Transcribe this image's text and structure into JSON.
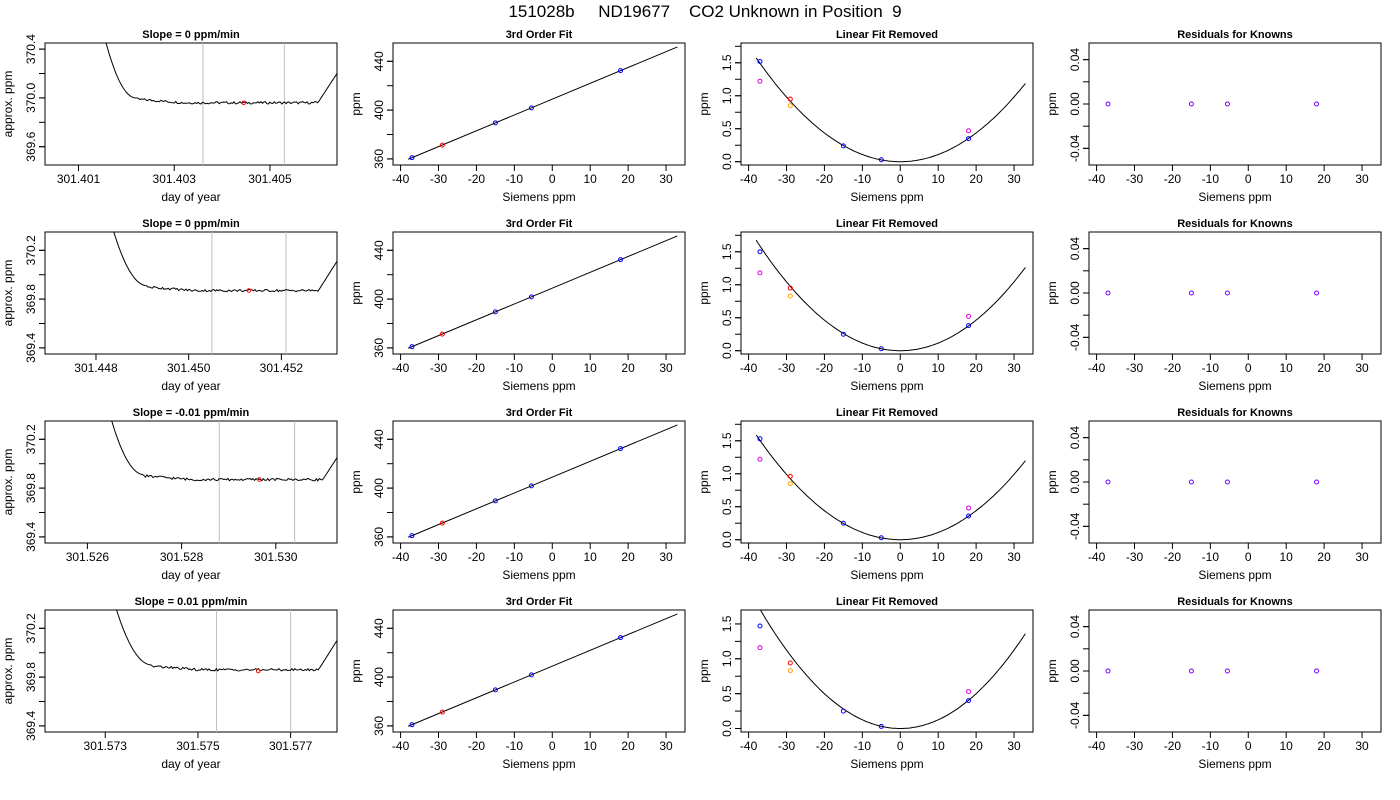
{
  "page_title": "151028b     ND19677    CO2 Unknown in Position  9",
  "chart_data": [
    {
      "type": "line",
      "panel": "time-trace",
      "title": "Slope =  0  ppm/min",
      "xlabel": "day of year",
      "ylabel": "approx. ppm",
      "xlim": [
        301.4003,
        301.4064
      ],
      "ylim": [
        369.45,
        370.45
      ],
      "xticks": [
        "301.401",
        "301.403",
        "301.405"
      ],
      "yticks": [
        "369.6",
        "370.0",
        "370.4"
      ],
      "window": [
        301.4036,
        301.4053
      ],
      "mean_point": [
        301.40445,
        369.96
      ],
      "plateau": 369.96,
      "rise_end": 301.4022,
      "fall_start": 301.406
    },
    {
      "type": "line",
      "panel": "cal-fit",
      "title": "3rd Order Fit",
      "xlabel": "Siemens ppm",
      "ylabel": "ppm",
      "xlim": [
        -42,
        35
      ],
      "ylim": [
        355,
        455
      ],
      "xticks": [
        "-40",
        "-30",
        "-20",
        "-10",
        "0",
        "10",
        "20",
        "30"
      ],
      "yticks": [
        "360",
        "400",
        "440"
      ],
      "line": [
        [
          -38,
          359.7
        ],
        [
          33,
          451.8
        ]
      ],
      "points": [
        {
          "x": -37,
          "y": 361.0,
          "color": "blue"
        },
        {
          "x": -29,
          "y": 371.3,
          "color": "red"
        },
        {
          "x": -15,
          "y": 389.5,
          "color": "blue"
        },
        {
          "x": -5.5,
          "y": 401.8,
          "color": "blue"
        },
        {
          "x": 18,
          "y": 432.4,
          "color": "blue"
        }
      ]
    },
    {
      "type": "scatter",
      "panel": "linear-removed",
      "title": "Linear Fit Removed",
      "xlabel": "Siemens ppm",
      "ylabel": "ppm",
      "xlim": [
        -42,
        35
      ],
      "ylim": [
        -0.05,
        1.8
      ],
      "xticks": [
        "-40",
        "-30",
        "-20",
        "-10",
        "0",
        "10",
        "20",
        "30"
      ],
      "yticks": [
        "0.0",
        "0.5",
        "1.0",
        "1.5"
      ],
      "curve_a": 0.00109,
      "points": [
        {
          "x": -37,
          "y": 1.52,
          "color": "blue"
        },
        {
          "x": -37,
          "y": 1.22,
          "color": "magenta"
        },
        {
          "x": -29,
          "y": 0.95,
          "color": "red"
        },
        {
          "x": -29,
          "y": 0.85,
          "color": "orange"
        },
        {
          "x": -15,
          "y": 0.24,
          "color": "blue"
        },
        {
          "x": -5,
          "y": 0.03,
          "color": "blue"
        },
        {
          "x": 18,
          "y": 0.35,
          "color": "blue"
        },
        {
          "x": 18,
          "y": 0.47,
          "color": "magenta"
        }
      ]
    },
    {
      "type": "scatter",
      "panel": "residuals",
      "title": "Residuals for Knowns",
      "xlabel": "Siemens ppm",
      "ylabel": "ppm",
      "xlim": [
        -42,
        35
      ],
      "ylim": [
        -0.055,
        0.055
      ],
      "xticks": [
        "-40",
        "-30",
        "-20",
        "-10",
        "0",
        "10",
        "20",
        "30"
      ],
      "yticks": [
        "-0.04",
        "0.00",
        "0.04"
      ],
      "points": [
        {
          "x": -37,
          "y": 0
        },
        {
          "x": -15,
          "y": 0
        },
        {
          "x": -5.5,
          "y": 0
        },
        {
          "x": 18,
          "y": 0
        }
      ]
    },
    {
      "type": "line",
      "panel": "time-trace",
      "title": "Slope =  0  ppm/min",
      "xlabel": "day of year",
      "ylabel": "approx. ppm",
      "xlim": [
        301.4469,
        301.4532
      ],
      "ylim": [
        369.35,
        370.35
      ],
      "xticks": [
        "301.448",
        "301.450",
        "301.452"
      ],
      "yticks": [
        "369.4",
        "369.8",
        "370.2"
      ],
      "window": [
        301.4505,
        301.4521
      ],
      "mean_point": [
        301.4513,
        369.87
      ],
      "plateau": 369.87,
      "rise_end": 301.4491,
      "fall_start": 301.4528
    },
    {
      "type": "line",
      "panel": "cal-fit",
      "title": "3rd Order Fit",
      "xlabel": "Siemens ppm",
      "ylabel": "ppm",
      "xlim": [
        -42,
        35
      ],
      "ylim": [
        355,
        455
      ],
      "xticks": [
        "-40",
        "-30",
        "-20",
        "-10",
        "0",
        "10",
        "20",
        "30"
      ],
      "yticks": [
        "360",
        "400",
        "440"
      ],
      "line": [
        [
          -38,
          359.7
        ],
        [
          33,
          451.8
        ]
      ],
      "points": [
        {
          "x": -37,
          "y": 361.0,
          "color": "blue"
        },
        {
          "x": -29,
          "y": 371.3,
          "color": "red"
        },
        {
          "x": -15,
          "y": 389.5,
          "color": "blue"
        },
        {
          "x": -5.5,
          "y": 401.8,
          "color": "blue"
        },
        {
          "x": 18,
          "y": 432.4,
          "color": "blue"
        }
      ]
    },
    {
      "type": "scatter",
      "panel": "linear-removed",
      "title": "Linear Fit Removed",
      "xlabel": "Siemens ppm",
      "ylabel": "ppm",
      "xlim": [
        -42,
        35
      ],
      "ylim": [
        -0.05,
        1.8
      ],
      "xticks": [
        "-40",
        "-30",
        "-20",
        "-10",
        "0",
        "10",
        "20",
        "30"
      ],
      "yticks": [
        "0.0",
        "0.5",
        "1.0",
        "1.5"
      ],
      "curve_a": 0.00116,
      "points": [
        {
          "x": -37,
          "y": 1.5,
          "color": "blue"
        },
        {
          "x": -37,
          "y": 1.18,
          "color": "magenta"
        },
        {
          "x": -29,
          "y": 0.95,
          "color": "red"
        },
        {
          "x": -29,
          "y": 0.83,
          "color": "orange"
        },
        {
          "x": -15,
          "y": 0.25,
          "color": "blue"
        },
        {
          "x": -5,
          "y": 0.03,
          "color": "blue"
        },
        {
          "x": 18,
          "y": 0.38,
          "color": "blue"
        },
        {
          "x": 18,
          "y": 0.52,
          "color": "magenta"
        }
      ]
    },
    {
      "type": "scatter",
      "panel": "residuals",
      "title": "Residuals for Knowns",
      "xlabel": "Siemens ppm",
      "ylabel": "ppm",
      "xlim": [
        -42,
        35
      ],
      "ylim": [
        -0.055,
        0.055
      ],
      "xticks": [
        "-40",
        "-30",
        "-20",
        "-10",
        "0",
        "10",
        "20",
        "30"
      ],
      "yticks": [
        "-0.04",
        "0.00",
        "0.04"
      ],
      "points": [
        {
          "x": -37,
          "y": 0
        },
        {
          "x": -15,
          "y": 0
        },
        {
          "x": -5.5,
          "y": 0
        },
        {
          "x": 18,
          "y": 0
        }
      ]
    },
    {
      "type": "line",
      "panel": "time-trace",
      "title": "Slope =  -0.01  ppm/min",
      "xlabel": "day of year",
      "ylabel": "approx. ppm",
      "xlim": [
        301.5251,
        301.5313
      ],
      "ylim": [
        369.35,
        370.35
      ],
      "xticks": [
        "301.526",
        "301.528",
        "301.530"
      ],
      "yticks": [
        "369.4",
        "369.8",
        "370.2"
      ],
      "window": [
        301.5288,
        301.5304
      ],
      "mean_point": [
        301.52965,
        369.87
      ],
      "plateau": 369.87,
      "rise_end": 301.5272,
      "fall_start": 301.531
    },
    {
      "type": "line",
      "panel": "cal-fit",
      "title": "3rd Order Fit",
      "xlabel": "Siemens ppm",
      "ylabel": "ppm",
      "xlim": [
        -42,
        35
      ],
      "ylim": [
        355,
        455
      ],
      "xticks": [
        "-40",
        "-30",
        "-20",
        "-10",
        "0",
        "10",
        "20",
        "30"
      ],
      "yticks": [
        "360",
        "400",
        "440"
      ],
      "line": [
        [
          -38,
          359.7
        ],
        [
          33,
          451.8
        ]
      ],
      "points": [
        {
          "x": -37,
          "y": 361.0,
          "color": "blue"
        },
        {
          "x": -29,
          "y": 371.3,
          "color": "red"
        },
        {
          "x": -15,
          "y": 389.5,
          "color": "blue"
        },
        {
          "x": -5.5,
          "y": 401.8,
          "color": "blue"
        },
        {
          "x": 18,
          "y": 432.4,
          "color": "blue"
        }
      ]
    },
    {
      "type": "scatter",
      "panel": "linear-removed",
      "title": "Linear Fit Removed",
      "xlabel": "Siemens ppm",
      "ylabel": "ppm",
      "xlim": [
        -42,
        35
      ],
      "ylim": [
        -0.05,
        1.8
      ],
      "xticks": [
        "-40",
        "-30",
        "-20",
        "-10",
        "0",
        "10",
        "20",
        "30"
      ],
      "yticks": [
        "0.0",
        "0.5",
        "1.0",
        "1.5"
      ],
      "curve_a": 0.0011,
      "points": [
        {
          "x": -37,
          "y": 1.53,
          "color": "blue"
        },
        {
          "x": -37,
          "y": 1.22,
          "color": "magenta"
        },
        {
          "x": -29,
          "y": 0.96,
          "color": "red"
        },
        {
          "x": -29,
          "y": 0.85,
          "color": "orange"
        },
        {
          "x": -15,
          "y": 0.25,
          "color": "blue"
        },
        {
          "x": -5,
          "y": 0.03,
          "color": "blue"
        },
        {
          "x": 18,
          "y": 0.36,
          "color": "blue"
        },
        {
          "x": 18,
          "y": 0.48,
          "color": "magenta"
        }
      ]
    },
    {
      "type": "scatter",
      "panel": "residuals",
      "title": "Residuals for Knowns",
      "xlabel": "Siemens ppm",
      "ylabel": "ppm",
      "xlim": [
        -42,
        35
      ],
      "ylim": [
        -0.055,
        0.055
      ],
      "xticks": [
        "-40",
        "-30",
        "-20",
        "-10",
        "0",
        "10",
        "20",
        "30"
      ],
      "yticks": [
        "-0.04",
        "0.00",
        "0.04"
      ],
      "points": [
        {
          "x": -37,
          "y": 0
        },
        {
          "x": -15,
          "y": 0
        },
        {
          "x": -5.5,
          "y": 0
        },
        {
          "x": 18,
          "y": 0
        }
      ]
    },
    {
      "type": "line",
      "panel": "time-trace",
      "title": "Slope =  0.01  ppm/min",
      "xlabel": "day of year",
      "ylabel": "approx. ppm",
      "xlim": [
        301.5717,
        301.578
      ],
      "ylim": [
        369.35,
        370.35
      ],
      "xticks": [
        "301.573",
        "301.575",
        "301.577"
      ],
      "yticks": [
        "369.4",
        "369.8",
        "370.2"
      ],
      "window": [
        301.5754,
        301.577
      ],
      "mean_point": [
        301.5763,
        369.85
      ],
      "plateau": 369.86,
      "rise_end": 301.574,
      "fall_start": 301.5776
    },
    {
      "type": "line",
      "panel": "cal-fit",
      "title": "3rd Order Fit",
      "xlabel": "Siemens ppm",
      "ylabel": "ppm",
      "xlim": [
        -42,
        35
      ],
      "ylim": [
        355,
        455
      ],
      "xticks": [
        "-40",
        "-30",
        "-20",
        "-10",
        "0",
        "10",
        "20",
        "30"
      ],
      "yticks": [
        "360",
        "400",
        "440"
      ],
      "line": [
        [
          -38,
          359.7
        ],
        [
          33,
          451.8
        ]
      ],
      "points": [
        {
          "x": -37,
          "y": 361.0,
          "color": "blue"
        },
        {
          "x": -29,
          "y": 371.3,
          "color": "red"
        },
        {
          "x": -15,
          "y": 389.5,
          "color": "blue"
        },
        {
          "x": -5.5,
          "y": 401.8,
          "color": "blue"
        },
        {
          "x": 18,
          "y": 432.4,
          "color": "blue"
        }
      ]
    },
    {
      "type": "scatter",
      "panel": "linear-removed",
      "title": "Linear Fit Removed",
      "xlabel": "Siemens ppm",
      "ylabel": "ppm",
      "xlim": [
        -42,
        35
      ],
      "ylim": [
        -0.05,
        1.7
      ],
      "xticks": [
        "-40",
        "-30",
        "-20",
        "-10",
        "0",
        "10",
        "20",
        "30"
      ],
      "yticks": [
        "0.0",
        "0.5",
        "1.0",
        "1.5"
      ],
      "curve_a": 0.00125,
      "points": [
        {
          "x": -37,
          "y": 1.47,
          "color": "blue"
        },
        {
          "x": -37,
          "y": 1.16,
          "color": "magenta"
        },
        {
          "x": -29,
          "y": 0.94,
          "color": "red"
        },
        {
          "x": -29,
          "y": 0.83,
          "color": "orange"
        },
        {
          "x": -15,
          "y": 0.25,
          "color": "blue"
        },
        {
          "x": -5,
          "y": 0.03,
          "color": "blue"
        },
        {
          "x": 18,
          "y": 0.4,
          "color": "blue"
        },
        {
          "x": 18,
          "y": 0.53,
          "color": "magenta"
        }
      ]
    },
    {
      "type": "scatter",
      "panel": "residuals",
      "title": "Residuals for Knowns",
      "xlabel": "Siemens ppm",
      "ylabel": "ppm",
      "xlim": [
        -42,
        35
      ],
      "ylim": [
        -0.055,
        0.055
      ],
      "xticks": [
        "-40",
        "-30",
        "-20",
        "-10",
        "0",
        "10",
        "20",
        "30"
      ],
      "yticks": [
        "-0.04",
        "0.00",
        "0.04"
      ],
      "points": [
        {
          "x": -37,
          "y": 0
        },
        {
          "x": -15,
          "y": 0
        },
        {
          "x": -5.5,
          "y": 0
        },
        {
          "x": 18,
          "y": 0
        }
      ]
    }
  ],
  "colors": {
    "blue": "#0000ff",
    "red": "#ff0000",
    "magenta": "#dd00dd",
    "orange": "#ffa500",
    "line": "#000000",
    "window": "#bebebe",
    "residual": "#7700ff"
  }
}
